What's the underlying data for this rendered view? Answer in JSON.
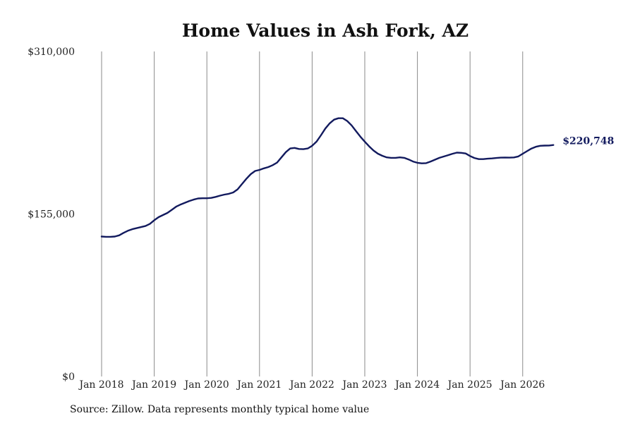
{
  "chart_data": {
    "type": "line",
    "title": "Home Values in Ash Fork, AZ",
    "xlabel": "",
    "ylabel": "",
    "ylim": [
      0,
      310000
    ],
    "y_ticks": [
      0,
      155000,
      310000
    ],
    "y_tick_labels": [
      "$0",
      "$155,000",
      "$310,000"
    ],
    "x_ticks": [
      "2018-01",
      "2019-01",
      "2020-01",
      "2021-01",
      "2022-01",
      "2023-01",
      "2024-01",
      "2025-01",
      "2026-01"
    ],
    "x_tick_labels": [
      "Jan 2018",
      "Jan 2019",
      "Jan 2020",
      "Jan 2021",
      "Jan 2022",
      "Jan 2023",
      "Jan 2024",
      "Jan 2025",
      "Jan 2026"
    ],
    "vertical_gridlines": true,
    "color": "#121a5e",
    "end_label": "$220,748",
    "series": [
      {
        "name": "",
        "points": [
          [
            "2018-01",
            133500
          ],
          [
            "2018-02",
            133200
          ],
          [
            "2018-03",
            133200
          ],
          [
            "2018-04",
            133500
          ],
          [
            "2018-05",
            134600
          ],
          [
            "2018-06",
            137000
          ],
          [
            "2018-07",
            139000
          ],
          [
            "2018-08",
            140500
          ],
          [
            "2018-09",
            141500
          ],
          [
            "2018-10",
            142500
          ],
          [
            "2018-11",
            143500
          ],
          [
            "2018-12",
            145500
          ],
          [
            "2019-01",
            149000
          ],
          [
            "2019-02",
            152000
          ],
          [
            "2019-03",
            154000
          ],
          [
            "2019-04",
            156000
          ],
          [
            "2019-05",
            159000
          ],
          [
            "2019-06",
            162000
          ],
          [
            "2019-07",
            164000
          ],
          [
            "2019-08",
            165700
          ],
          [
            "2019-09",
            167400
          ],
          [
            "2019-10",
            168700
          ],
          [
            "2019-11",
            169800
          ],
          [
            "2019-12",
            170000
          ],
          [
            "2020-01",
            170000
          ],
          [
            "2020-02",
            170300
          ],
          [
            "2020-03",
            171300
          ],
          [
            "2020-04",
            172500
          ],
          [
            "2020-05",
            173500
          ],
          [
            "2020-06",
            174200
          ],
          [
            "2020-07",
            175500
          ],
          [
            "2020-08",
            178500
          ],
          [
            "2020-09",
            183500
          ],
          [
            "2020-10",
            188500
          ],
          [
            "2020-11",
            193000
          ],
          [
            "2020-12",
            196000
          ],
          [
            "2021-01",
            197000
          ],
          [
            "2021-02",
            198500
          ],
          [
            "2021-03",
            199700
          ],
          [
            "2021-04",
            201500
          ],
          [
            "2021-05",
            204000
          ],
          [
            "2021-06",
            209000
          ],
          [
            "2021-07",
            214000
          ],
          [
            "2021-08",
            217500
          ],
          [
            "2021-09",
            218000
          ],
          [
            "2021-10",
            217000
          ],
          [
            "2021-11",
            216800
          ],
          [
            "2021-12",
            217500
          ],
          [
            "2022-01",
            220000
          ],
          [
            "2022-02",
            224000
          ],
          [
            "2022-03",
            230000
          ],
          [
            "2022-04",
            236500
          ],
          [
            "2022-05",
            241500
          ],
          [
            "2022-06",
            245000
          ],
          [
            "2022-07",
            246300
          ],
          [
            "2022-08",
            246300
          ],
          [
            "2022-09",
            243700
          ],
          [
            "2022-10",
            239500
          ],
          [
            "2022-11",
            234000
          ],
          [
            "2022-12",
            228700
          ],
          [
            "2023-01",
            224000
          ],
          [
            "2023-02",
            219500
          ],
          [
            "2023-03",
            215500
          ],
          [
            "2023-04",
            212500
          ],
          [
            "2023-05",
            210500
          ],
          [
            "2023-06",
            209000
          ],
          [
            "2023-07",
            208500
          ],
          [
            "2023-08",
            208500
          ],
          [
            "2023-09",
            209000
          ],
          [
            "2023-10",
            208500
          ],
          [
            "2023-11",
            207000
          ],
          [
            "2023-12",
            205000
          ],
          [
            "2024-01",
            203800
          ],
          [
            "2024-02",
            203300
          ],
          [
            "2024-03",
            203500
          ],
          [
            "2024-04",
            205000
          ],
          [
            "2024-05",
            206800
          ],
          [
            "2024-06",
            208500
          ],
          [
            "2024-07",
            209800
          ],
          [
            "2024-08",
            211100
          ],
          [
            "2024-09",
            212400
          ],
          [
            "2024-10",
            213500
          ],
          [
            "2024-11",
            213300
          ],
          [
            "2024-12",
            212700
          ],
          [
            "2025-01",
            210300
          ],
          [
            "2025-02",
            208400
          ],
          [
            "2025-03",
            207300
          ],
          [
            "2025-04",
            207300
          ],
          [
            "2025-05",
            207700
          ],
          [
            "2025-06",
            208000
          ],
          [
            "2025-07",
            208400
          ],
          [
            "2025-08",
            208700
          ],
          [
            "2025-09",
            208800
          ],
          [
            "2025-10",
            208700
          ],
          [
            "2025-11",
            208900
          ],
          [
            "2025-12",
            209900
          ],
          [
            "2026-01",
            212400
          ],
          [
            "2026-02",
            214900
          ],
          [
            "2026-03",
            217400
          ],
          [
            "2026-04",
            219100
          ],
          [
            "2026-05",
            220000
          ],
          [
            "2026-06",
            220200
          ],
          [
            "2026-07",
            220300
          ],
          [
            "2026-08",
            220748
          ]
        ]
      }
    ]
  },
  "source": "Source: Zillow. Data represents monthly typical home value"
}
